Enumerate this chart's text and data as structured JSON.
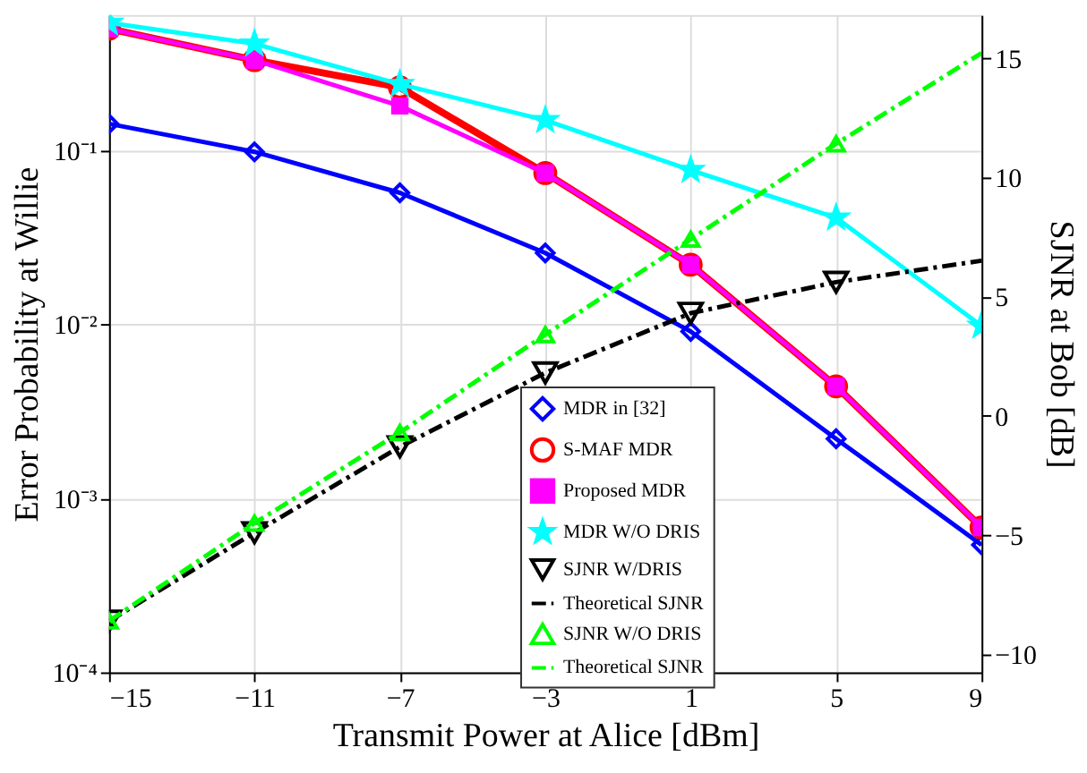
{
  "chart_data": {
    "type": "line",
    "xlabel": "Transmit Power at Alice [dBm]",
    "ylabel": "Error Probability at Willie",
    "y2label": "SJNR at Bob [dB]",
    "x": [
      -15,
      -11,
      -7,
      -3,
      1,
      5,
      9
    ],
    "xlim": [
      -15,
      9
    ],
    "xticks": [
      -15,
      -11,
      -7,
      -3,
      1,
      5,
      9
    ],
    "log": "y",
    "ylim": [
      0.0001,
      0.6
    ],
    "yticks": [
      {
        "value": 0.0001,
        "label": "10⁻⁴"
      },
      {
        "value": 0.001,
        "label": "10⁻³"
      },
      {
        "value": 0.01,
        "label": "10⁻²"
      },
      {
        "value": 0.1,
        "label": "10⁻¹"
      }
    ],
    "y2lim": [
      -10.75,
      16.8
    ],
    "y2ticks": [
      -10,
      -5,
      0,
      5,
      10,
      15
    ],
    "grid": true,
    "legend": "bottom right",
    "series": [
      {
        "name": "MDR in [32]",
        "color": "#0000ff",
        "marker": "diamond",
        "line_style": "solid",
        "values": [
          0.142,
          0.098,
          0.057,
          0.0257,
          0.0091,
          0.0022,
          0.00054
        ]
      },
      {
        "name": "S-MAF MDR",
        "color": "#ff0000",
        "marker": "circle",
        "line_style": "solid",
        "values": [
          0.5,
          0.33,
          0.23,
          0.074,
          0.022,
          0.0044,
          0.00068
        ]
      },
      {
        "name": "Proposed MDR",
        "color": "#ff00ff",
        "marker": "square",
        "line_style": "solid",
        "values": [
          0.5,
          0.33,
          0.18,
          0.074,
          0.022,
          0.0044,
          0.00068
        ]
      },
      {
        "name": "MDR W/O DRIS",
        "color": "#00ffff",
        "marker": "star",
        "line_style": "solid",
        "values": [
          0.54,
          0.41,
          0.24,
          0.149,
          0.077,
          0.041,
          0.0098
        ]
      },
      {
        "name": "SJNR W/DRIS",
        "type": "scatter",
        "axis": "y2",
        "color": "#000000",
        "marker": "triangle-down",
        "values": [
          -8.6,
          -4.9,
          -1.3,
          1.8,
          4.3,
          5.6,
          null
        ]
      },
      {
        "name": "Theoretical SJNR",
        "axis": "y2",
        "color": "#000000",
        "marker": "none",
        "line_style": "dashed",
        "values": [
          -8.6,
          -4.9,
          -1.3,
          1.8,
          4.3,
          5.6,
          6.5
        ]
      },
      {
        "name": "SJNR W/O DRIS",
        "type": "scatter",
        "axis": "y2",
        "color": "#00ff00",
        "marker": "triangle",
        "values": [
          -8.6,
          -4.5,
          -0.7,
          3.4,
          7.4,
          11.4,
          null
        ]
      },
      {
        "name": "Theoretical SJNR",
        "axis": "y2",
        "color": "#00ff00",
        "marker": "none",
        "line_style": "dashed",
        "values": [
          -8.6,
          -4.5,
          -0.7,
          3.4,
          7.4,
          11.4,
          15.2
        ]
      }
    ]
  }
}
